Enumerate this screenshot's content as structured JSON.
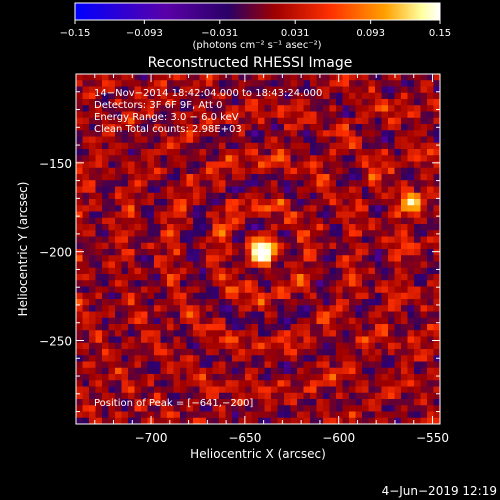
{
  "chart_data": {
    "type": "heatmap",
    "title": "Reconstructed RHESSI Image",
    "xlabel": "Heliocentric X (arcsec)",
    "ylabel": "Heliocentric Y (arcsec)",
    "xlim": [
      -740,
      -546
    ],
    "ylim": [
      -297,
      -100
    ],
    "x_ticks": [
      -700,
      -650,
      -600,
      -550
    ],
    "y_ticks": [
      -250,
      -200,
      -150
    ],
    "x_tick_labels": [
      "−700",
      "−650",
      "−600",
      "−550"
    ],
    "y_tick_labels": [
      "−250",
      "−200",
      "−150"
    ],
    "colorbar": {
      "min": -0.15,
      "max": 0.15,
      "ticks": [
        -0.15,
        -0.093,
        -0.031,
        0.031,
        0.093,
        0.15
      ],
      "tick_labels": [
        "−0.15",
        "−0.093",
        "−0.031",
        "0.031",
        "0.093",
        "0.15"
      ],
      "unit_label": "(photons cm⁻² s⁻¹ asec⁻²)",
      "colors": [
        "#0000ff",
        "#5a00a8",
        "#2a0066",
        "#a00000",
        "#ff3000",
        "#ffa000",
        "#ffffa0",
        "#ffffff"
      ]
    },
    "annotations": [
      "14−Nov−2014 18:42:04.000 to 18:43:24.000",
      "Detectors: 3F 6F 9F, Att 0",
      "Energy Range: 3.0 − 6.0 keV",
      "Clean      Total counts: 2.98E+03"
    ],
    "peak_label": "Position of Peak = [−641,−200]",
    "sources": [
      {
        "x": -641,
        "y": -200,
        "strength": 1.0
      },
      {
        "x": -561,
        "y": -172,
        "strength": 0.55
      }
    ],
    "grid": false,
    "legend": "none"
  },
  "footer": {
    "date_stamp": "4−Jun−2019 12:19"
  }
}
